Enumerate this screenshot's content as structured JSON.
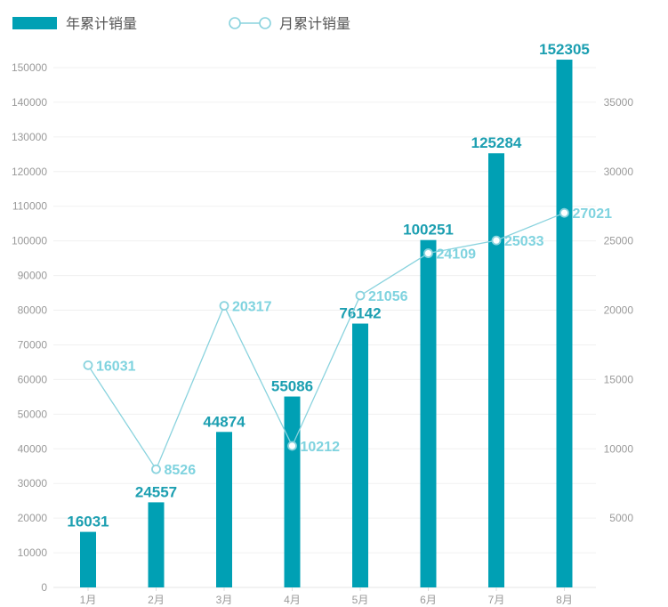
{
  "chart_data": {
    "type": "bar",
    "categories": [
      "1月",
      "2月",
      "3月",
      "4月",
      "5月",
      "6月",
      "7月",
      "8月"
    ],
    "series": [
      {
        "name": "年累计销量",
        "type": "bar",
        "axis": "left",
        "values": [
          16031,
          24557,
          44874,
          55086,
          76142,
          100251,
          125284,
          152305
        ],
        "color": "#00a0b4"
      },
      {
        "name": "月累计销量",
        "type": "line",
        "axis": "right",
        "values": [
          16031,
          8526,
          20317,
          10212,
          21056,
          24109,
          25033,
          27021
        ],
        "color": "#8ad3de"
      }
    ],
    "y_left": {
      "ylim": [
        0,
        150000
      ],
      "ticks": [
        "0",
        "10000",
        "20000",
        "30000",
        "40000",
        "50000",
        "60000",
        "70000",
        "80000",
        "90000",
        "100000",
        "110000",
        "120000",
        "130000",
        "140000",
        "150000"
      ]
    },
    "y_right": {
      "ylim": [
        0,
        37500
      ],
      "ticks": [
        "5000",
        "10000",
        "15000",
        "20000",
        "25000",
        "30000",
        "35000"
      ]
    },
    "legend_position": "top-left",
    "grid": true
  }
}
